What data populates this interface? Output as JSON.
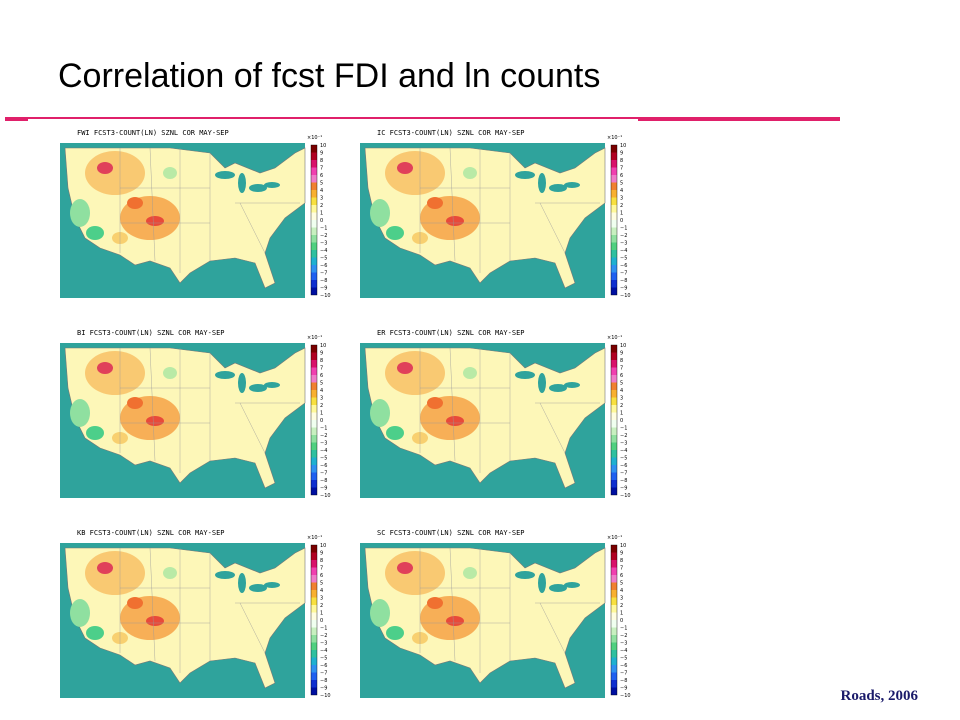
{
  "header": {
    "title": "Correlation of fcst FDI and ln counts"
  },
  "panels": [
    {
      "title": "FWI FCST3-COUNT(LN) SZNL COR MAY-SEP"
    },
    {
      "title": "IC FCST3-COUNT(LN) SZNL COR MAY-SEP"
    },
    {
      "title": "BI FCST3-COUNT(LN) SZNL COR MAY-SEP"
    },
    {
      "title": "ER FCST3-COUNT(LN) SZNL COR MAY-SEP"
    },
    {
      "title": "KB FCST3-COUNT(LN) SZNL COR MAY-SEP"
    },
    {
      "title": "SC FCST3-COUNT(LN) SZNL COR MAY-SEP"
    }
  ],
  "colorbar": {
    "unit": "×10⁻¹",
    "ticks": [
      "10",
      "9",
      "8",
      "7",
      "6",
      "5",
      "4",
      "3",
      "2",
      "1",
      "0",
      "−1",
      "−2",
      "−3",
      "−4",
      "−5",
      "−6",
      "−7",
      "−8",
      "−9",
      "−10"
    ]
  },
  "footer": {
    "credit": "Roads, 2006"
  }
}
